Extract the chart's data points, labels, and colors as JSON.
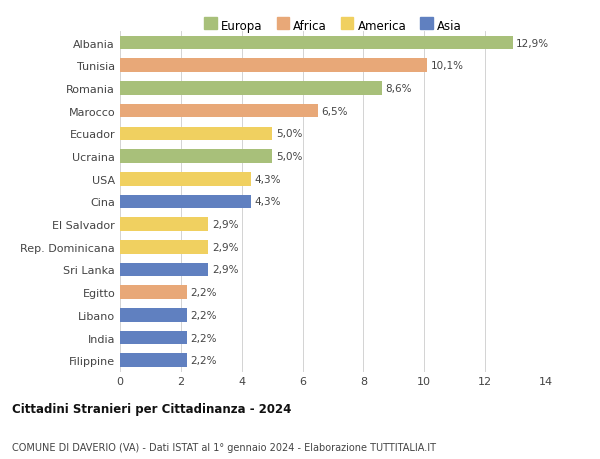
{
  "countries": [
    "Albania",
    "Tunisia",
    "Romania",
    "Marocco",
    "Ecuador",
    "Ucraina",
    "USA",
    "Cina",
    "El Salvador",
    "Rep. Dominicana",
    "Sri Lanka",
    "Egitto",
    "Libano",
    "India",
    "Filippine"
  ],
  "values": [
    12.9,
    10.1,
    8.6,
    6.5,
    5.0,
    5.0,
    4.3,
    4.3,
    2.9,
    2.9,
    2.9,
    2.2,
    2.2,
    2.2,
    2.2
  ],
  "labels": [
    "12,9%",
    "10,1%",
    "8,6%",
    "6,5%",
    "5,0%",
    "5,0%",
    "4,3%",
    "4,3%",
    "2,9%",
    "2,9%",
    "2,9%",
    "2,2%",
    "2,2%",
    "2,2%",
    "2,2%"
  ],
  "continents": [
    "Europa",
    "Africa",
    "Europa",
    "Africa",
    "America",
    "Europa",
    "America",
    "Asia",
    "America",
    "America",
    "Asia",
    "Africa",
    "Asia",
    "Asia",
    "Asia"
  ],
  "colors": {
    "Europa": "#a8c07a",
    "Africa": "#e8a878",
    "America": "#f0d060",
    "Asia": "#6080c0"
  },
  "legend_order": [
    "Europa",
    "Africa",
    "America",
    "Asia"
  ],
  "xlim": [
    0,
    14
  ],
  "xticks": [
    0,
    2,
    4,
    6,
    8,
    10,
    12,
    14
  ],
  "title": "Cittadini Stranieri per Cittadinanza - 2024",
  "subtitle": "COMUNE DI DAVERIO (VA) - Dati ISTAT al 1° gennaio 2024 - Elaborazione TUTTITALIA.IT",
  "background_color": "#ffffff",
  "bar_height": 0.6
}
